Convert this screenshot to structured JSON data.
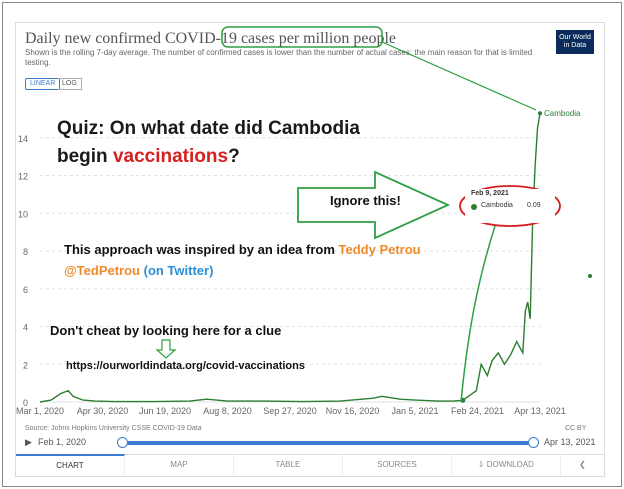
{
  "header": {
    "title_part1": "Daily new confirmed COVID-19",
    "title_part2": "cases per million people",
    "subtitle": "Shown is the rolling 7-day average. The number of confirmed cases is lower than the number of actual cases; the main reason for that is limited testing.",
    "logo_line1": "Our World",
    "logo_line2": "in Data"
  },
  "controls": {
    "linear_label": "LINEAR",
    "log_label": "LOG"
  },
  "chart_data": {
    "type": "line",
    "title": "Daily new confirmed COVID-19 cases per million people",
    "xlabel": "",
    "ylabel": "",
    "y_ticks": [
      "0",
      "2",
      "4",
      "6",
      "8",
      "10",
      "12",
      "14"
    ],
    "ylim": [
      0,
      16
    ],
    "x_ticks": [
      "Mar 1, 2020",
      "Apr 30, 2020",
      "Jun 19, 2020",
      "Aug 8, 2020",
      "Sep 27, 2020",
      "Nov 16, 2020",
      "Jan 5, 2021",
      "Feb 24, 2021",
      "Apr 13, 2021"
    ],
    "grid": true,
    "series": [
      {
        "name": "Cambodia",
        "color": "#2e7d32",
        "x": [
          "2020-03-01",
          "2020-03-10",
          "2020-03-18",
          "2020-03-24",
          "2020-03-28",
          "2020-04-05",
          "2020-04-15",
          "2020-05-01",
          "2020-06-01",
          "2020-07-01",
          "2020-07-15",
          "2020-08-01",
          "2020-09-01",
          "2020-10-01",
          "2020-11-01",
          "2020-11-28",
          "2020-12-05",
          "2020-12-20",
          "2021-01-01",
          "2021-01-20",
          "2021-02-01",
          "2021-02-09",
          "2021-02-20",
          "2021-02-24",
          "2021-03-01",
          "2021-03-05",
          "2021-03-10",
          "2021-03-15",
          "2021-03-20",
          "2021-03-25",
          "2021-03-30",
          "2021-04-01",
          "2021-04-03",
          "2021-04-05",
          "2021-04-07",
          "2021-04-09",
          "2021-04-11",
          "2021-04-13"
        ],
        "values": [
          0.0,
          0.1,
          0.45,
          0.6,
          0.3,
          0.1,
          0.05,
          0.02,
          0.02,
          0.05,
          0.15,
          0.05,
          0.05,
          0.02,
          0.05,
          0.2,
          0.3,
          0.15,
          0.1,
          0.05,
          0.05,
          0.09,
          0.6,
          2.0,
          1.4,
          2.2,
          2.6,
          2.0,
          2.5,
          3.2,
          2.6,
          4.8,
          5.3,
          4.4,
          9.5,
          12.5,
          14.5,
          15.3
        ]
      }
    ],
    "end_label": "Cambodia"
  },
  "tooltip": {
    "date": "Feb 9, 2021",
    "country": "Cambodia",
    "value": "0.09"
  },
  "annotations": {
    "quiz_line1": "Quiz: On what date did Cambodia",
    "quiz_line2_a": "begin ",
    "quiz_line2_b": "vaccinations",
    "quiz_line2_c": "?",
    "ignore": "Ignore this!",
    "inspired_a": "This approach was inspired by an idea from ",
    "inspired_b": "Teddy Petrou",
    "handle_a": "@TedPetrou ",
    "handle_b": "(on Twitter)",
    "cheat": "Don't cheat by looking here for a clue",
    "url": "https://ourworldindata.org/covid-vaccinations"
  },
  "footer": {
    "source": "Source: Johns Hopkins University CSSE COVID-19 Data",
    "license": "CC BY"
  },
  "timeline": {
    "start": "Feb 1, 2020",
    "end": "Apr 13, 2021"
  },
  "tabs": [
    "CHART",
    "MAP",
    "TABLE",
    "SOURCES",
    "DOWNLOAD",
    ""
  ],
  "icons": {
    "play": "play-icon",
    "download": "download-icon",
    "share": "share-icon"
  },
  "colors": {
    "annotation_green": "#2ea043",
    "annotation_red": "#d62020",
    "series": "#2e7d32",
    "accent": "#3a7ccf"
  }
}
